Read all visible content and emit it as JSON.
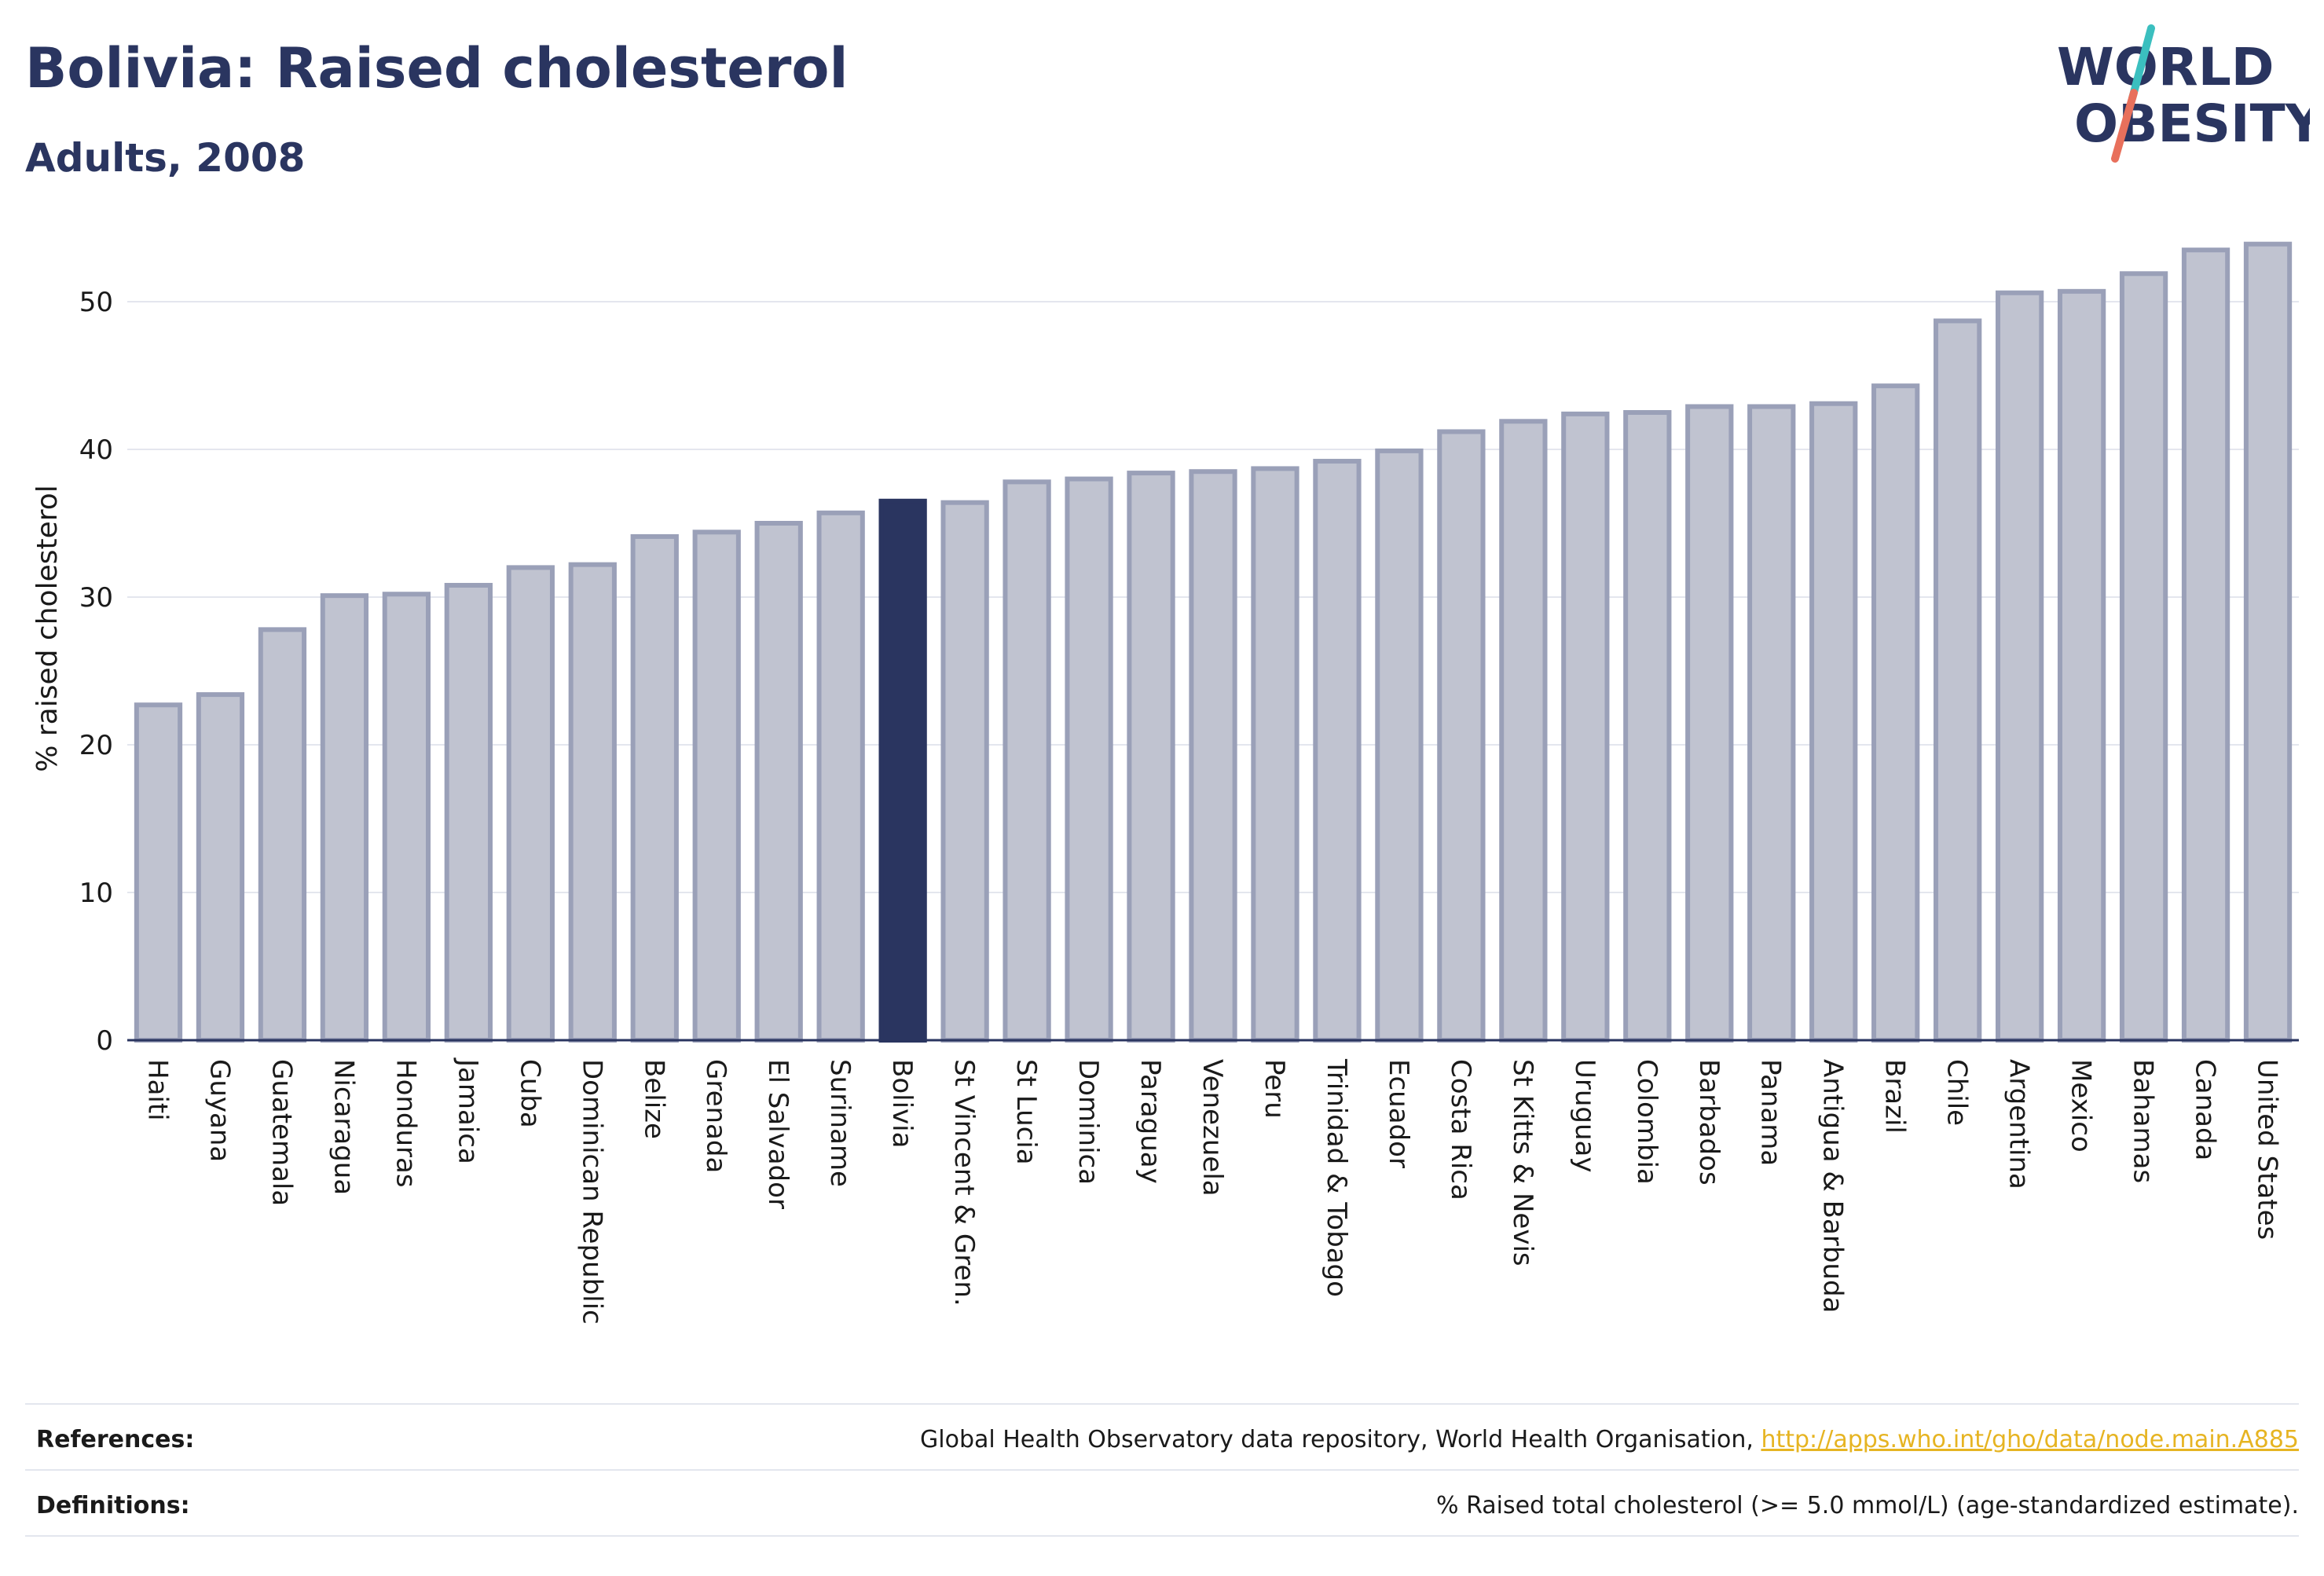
{
  "header": {
    "title": "Bolivia: Raised cholesterol",
    "subtitle": "Adults, 2008"
  },
  "logo": {
    "line1": "WORLD",
    "line2": "OBESITY",
    "colors": {
      "text": "#2a3560",
      "slash_teal": "#3bbfbf",
      "slash_coral": "#e8705c"
    }
  },
  "chart_data": {
    "type": "bar",
    "title": "Bolivia: Raised cholesterol",
    "subtitle": "Adults, 2008",
    "ylabel": "% raised cholesterol",
    "xlabel": "",
    "ylim": [
      0,
      55
    ],
    "yticks": [
      0,
      10,
      20,
      30,
      40,
      50
    ],
    "grid": true,
    "highlight": "Bolivia",
    "colors": {
      "bar": "#c0c3d0",
      "bar_border": "#9aa0b8",
      "highlight": "#2a3560"
    },
    "categories": [
      "Haiti",
      "Guyana",
      "Guatemala",
      "Nicaragua",
      "Honduras",
      "Jamaica",
      "Cuba",
      "Dominican Republic",
      "Belize",
      "Grenada",
      "El Salvador",
      "Suriname",
      "Bolivia",
      "St Vincent & Gren.",
      "St Lucia",
      "Dominica",
      "Paraguay",
      "Venezuela",
      "Peru",
      "Trinidad & Tobago",
      "Ecuador",
      "Costa Rica",
      "St Kitts & Nevis",
      "Uruguay",
      "Colombia",
      "Barbados",
      "Panama",
      "Antigua & Barbuda",
      "Brazil",
      "Chile",
      "Argentina",
      "Mexico",
      "Bahamas",
      "Canada",
      "United States"
    ],
    "values": [
      22.7,
      23.4,
      27.8,
      30.1,
      30.2,
      30.8,
      32.0,
      32.2,
      34.1,
      34.4,
      35.0,
      35.7,
      36.5,
      36.4,
      37.8,
      38.0,
      38.4,
      38.5,
      38.7,
      39.2,
      39.9,
      41.2,
      41.9,
      42.4,
      42.5,
      42.9,
      42.9,
      43.1,
      44.3,
      48.7,
      50.6,
      50.7,
      51.9,
      53.5,
      53.9
    ]
  },
  "footer": {
    "references_label": "References:",
    "references_text": "Global Health Observatory data repository, World Health Organisation, ",
    "references_link": "http://apps.who.int/gho/data/node.main.A885",
    "definitions_label": "Definitions:",
    "definitions_text": "% Raised total cholesterol (>= 5.0 mmol/L) (age-standardized estimate)."
  }
}
